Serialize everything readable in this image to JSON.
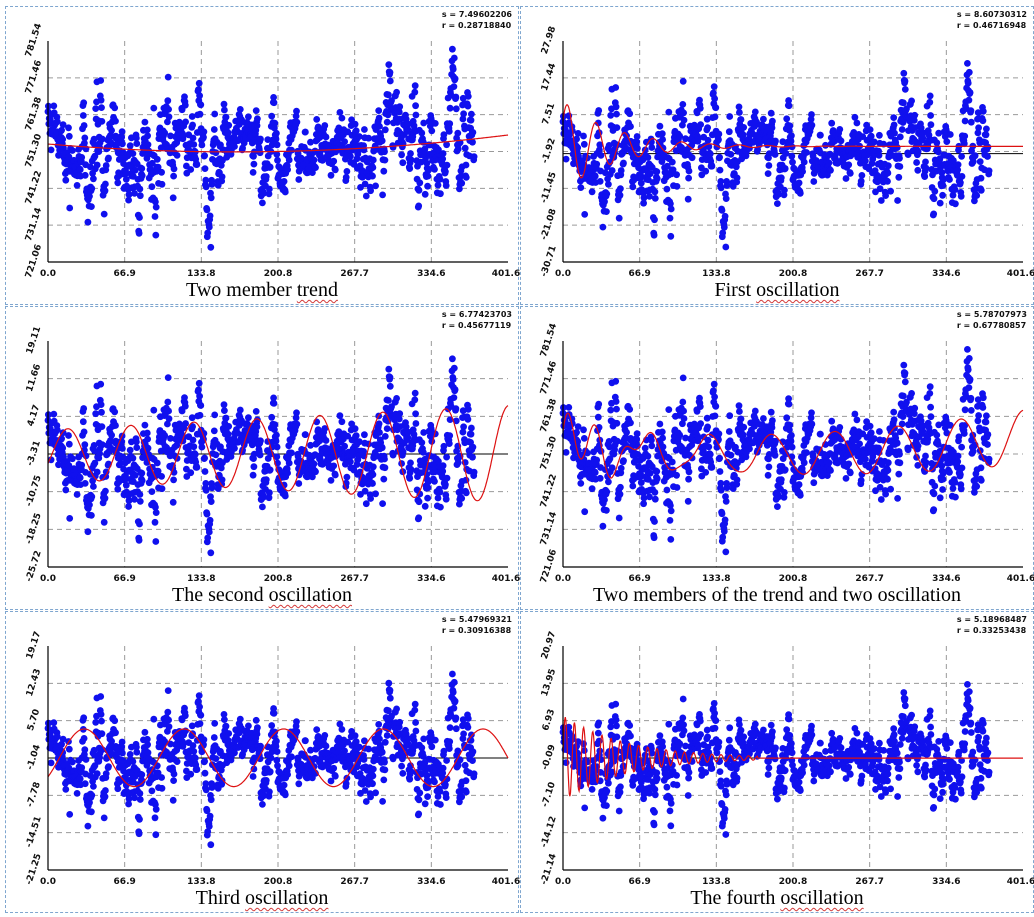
{
  "chart_data": [
    {
      "type": "scatter",
      "stats": {
        "s": "s = 7.49602206",
        "r": "r = 0.28718840"
      },
      "caption_pre": "Two member ",
      "caption_err": "trend",
      "caption_post": "",
      "yticks": [
        "781.54",
        "771.46",
        "761.38",
        "751.30",
        "741.22",
        "731.14",
        "721.06"
      ],
      "xticks": [
        "0.0",
        "66.9",
        "133.8",
        "200.8",
        "267.7",
        "334.6",
        "401.6"
      ],
      "ylim": [
        721.06,
        781.54
      ],
      "xlim": [
        0,
        401.6
      ],
      "series": [
        {
          "values": "dense scatter of observations, approx. 731–778, x 0–372"
        },
        {
          "values": "fitted curve: 751.3 + 0.48*(x-200)/80 + 0.52*((x-200)/80)^2"
        }
      ],
      "grid": true
    },
    {
      "type": "scatter",
      "stats": {
        "s": "s = 8.60730312",
        "r": "r = 0.46716948"
      },
      "caption_pre": "First ",
      "caption_err": "oscillation",
      "caption_post": "",
      "yticks": [
        "27.98",
        "17.44",
        "7.51",
        "-1.92",
        "-11.45",
        "-21.08",
        "-30.71"
      ],
      "xticks": [
        "0.0",
        "66.9",
        "133.8",
        "200.8",
        "267.7",
        "334.6",
        "401.6"
      ],
      "ylim": [
        -30.71,
        27.98
      ],
      "xlim": [
        0,
        401.6
      ],
      "series": [
        {
          "values": "dense scatter of residuals, approx. -28–22"
        },
        {
          "values": "damped oscillation, amplitude ~12 decaying to 0, period ~25"
        }
      ],
      "grid": true
    },
    {
      "type": "scatter",
      "stats": {
        "s": "s = 6.77423703",
        "r": "r = 0.45677119"
      },
      "caption_pre": "The second ",
      "caption_err": "oscillation",
      "caption_post": "",
      "yticks": [
        "19.11",
        "11.66",
        "4.17",
        "-3.31",
        "-10.75",
        "-18.25",
        "-25.72"
      ],
      "xticks": [
        "0.0",
        "66.9",
        "133.8",
        "200.8",
        "267.7",
        "334.6",
        "401.6"
      ],
      "ylim": [
        -25.72,
        19.11
      ],
      "xlim": [
        0,
        401.6
      ],
      "series": [
        {
          "values": "dense scatter of residuals, approx. -23–15"
        },
        {
          "values": "oscillation with growing amplitude, period ~55"
        }
      ],
      "grid": true
    },
    {
      "type": "scatter",
      "stats": {
        "s": "s = 5.78707973",
        "r": "r = 0.67780857"
      },
      "caption_pre": "Two members of the trend and two oscillation",
      "caption_err": "",
      "caption_post": "",
      "yticks": [
        "781.54",
        "771.46",
        "761.38",
        "751.30",
        "741.22",
        "731.14",
        "721.06"
      ],
      "xticks": [
        "0.0",
        "66.9",
        "133.8",
        "200.8",
        "267.7",
        "334.6",
        "401.6"
      ],
      "ylim": [
        721.06,
        781.54
      ],
      "xlim": [
        0,
        401.6
      ],
      "series": [
        {
          "values": "dense scatter of observations, approx. 731–778"
        },
        {
          "values": "combined model: trend + two oscillations"
        }
      ],
      "grid": true
    },
    {
      "type": "scatter",
      "stats": {
        "s": "s = 5.47969321",
        "r": "r = 0.30916388"
      },
      "caption_pre": "Third ",
      "caption_err": "oscillation",
      "caption_post": "",
      "yticks": [
        "19.17",
        "12.43",
        "5.70",
        "-1.04",
        "-7.78",
        "-14.51",
        "-21.25"
      ],
      "xticks": [
        "0.0",
        "66.9",
        "133.8",
        "200.8",
        "267.7",
        "334.6",
        "401.6"
      ],
      "ylim": [
        -21.25,
        19.17
      ],
      "xlim": [
        0,
        401.6
      ],
      "series": [
        {
          "values": "dense scatter of residuals, approx. -19–16"
        },
        {
          "values": "oscillation amplitude ~5, period ~87"
        }
      ],
      "grid": true
    },
    {
      "type": "scatter",
      "stats": {
        "s": "s = 5.18968487",
        "r": "r = 0.33253438"
      },
      "caption_pre": "The fourth ",
      "caption_err": "oscillation",
      "caption_post": "",
      "yticks": [
        "20.97",
        "13.95",
        "6.93",
        "-0.09",
        "-7.10",
        "-14.12",
        "-21.14"
      ],
      "xticks": [
        "0.0",
        "66.9",
        "133.8",
        "200.8",
        "267.7",
        "334.6",
        "401.6"
      ],
      "ylim": [
        -21.14,
        20.97
      ],
      "xlim": [
        0,
        401.6
      ],
      "series": [
        {
          "values": "dense scatter of residuals, approx. -19–18"
        },
        {
          "values": "high-frequency damped oscillation, period ~8, amplitude ~8 decaying to 0 by x≈170"
        }
      ],
      "grid": true
    }
  ],
  "colors": {
    "points": "#1010ee",
    "curve": "#dd1111",
    "grid": "#9a9a9a",
    "axis": "#000000"
  }
}
